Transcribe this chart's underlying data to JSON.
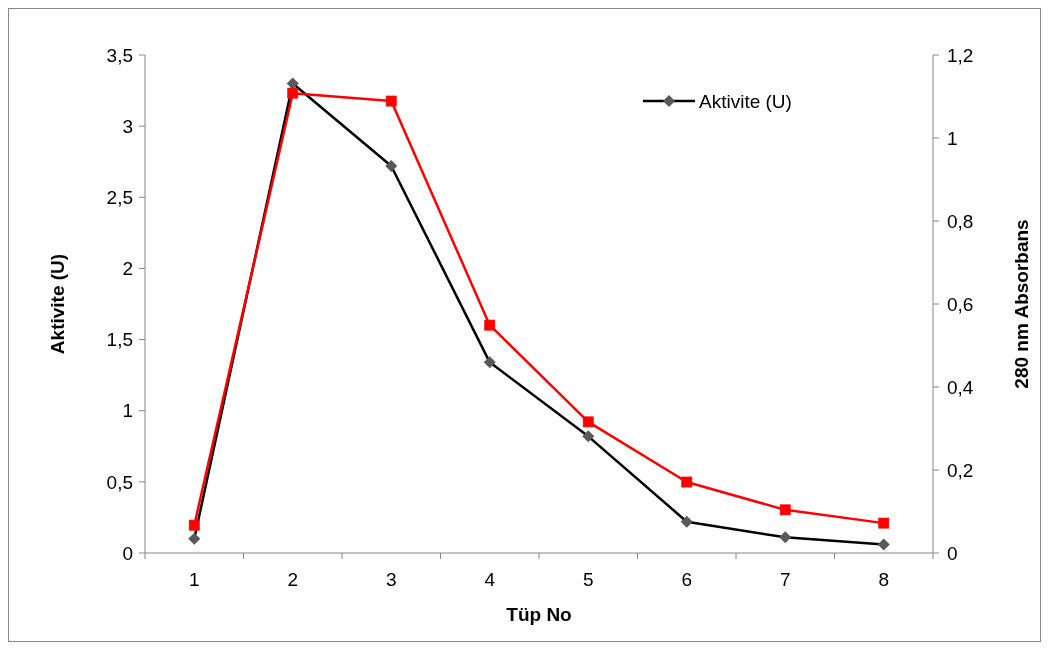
{
  "chart_data": {
    "type": "line",
    "xlabel": "Tüp No",
    "ylabel": "Aktivite (U)",
    "y2label": "280 nm Absorbans",
    "categories": [
      "1",
      "2",
      "3",
      "4",
      "5",
      "6",
      "7",
      "8"
    ],
    "series": [
      {
        "name": "Aktivite (U)",
        "color": "#000000",
        "marker": "diamond",
        "values": [
          0.1,
          3.3,
          2.72,
          1.34,
          0.82,
          0.22,
          0.11,
          0.06
        ]
      },
      {
        "color": "#ff0000",
        "marker": "square",
        "axis": "y2",
        "values": [
          0.067,
          1.108,
          1.089,
          0.549,
          0.316,
          0.171,
          0.104,
          0.072
        ]
      }
    ],
    "ylim": [
      0,
      3.5
    ],
    "yticks": [
      0,
      {
        "value": 0.5,
        "label": "0,5"
      },
      1,
      {
        "value": 1.5,
        "label": "1,5"
      },
      2,
      {
        "value": 2.5,
        "label": "2,5"
      },
      3,
      {
        "value": 3.5,
        "label": "3,5"
      }
    ],
    "y2lim": [
      0,
      1.2
    ],
    "y2ticks": [
      0,
      {
        "value": 0.2,
        "label": "0,2"
      },
      {
        "value": 0.4,
        "label": "0,4"
      },
      {
        "value": 0.6,
        "label": "0,6"
      },
      {
        "value": 0.8,
        "label": "0,8"
      },
      1,
      {
        "value": 1.2,
        "label": "1,2"
      }
    ],
    "grid": false,
    "legend": "top right"
  }
}
